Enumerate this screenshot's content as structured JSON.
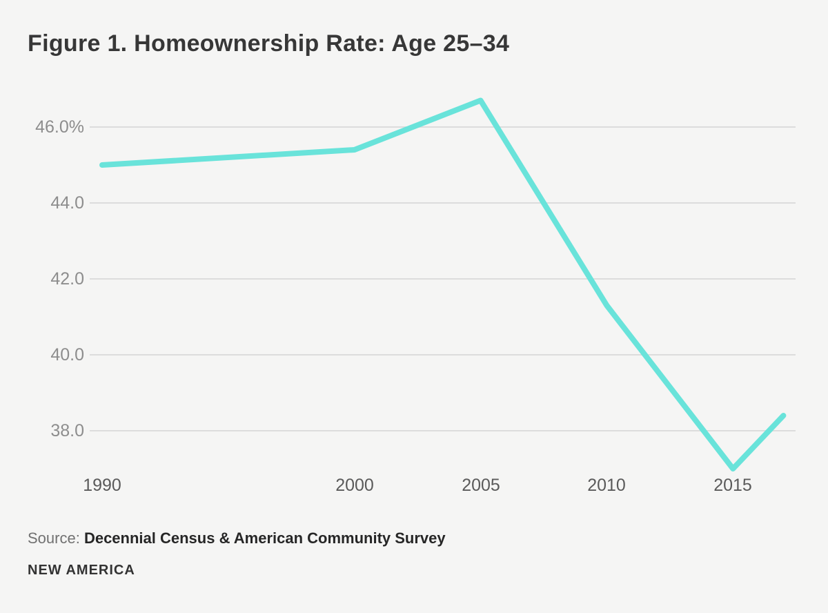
{
  "chart_data": {
    "type": "line",
    "title": "Figure 1. Homeownership Rate: Age 25–34",
    "x": [
      1990,
      2000,
      2005,
      2010,
      2015,
      2017
    ],
    "values": [
      45.0,
      45.4,
      46.7,
      41.3,
      37.0,
      38.4
    ],
    "series_name": "Homeownership rate, age 25–34 (%)",
    "xlabel": "",
    "ylabel": "",
    "ylim": [
      36.9,
      47.1
    ],
    "ytick_values": [
      46.0,
      44.0,
      42.0,
      40.0,
      38.0
    ],
    "ytick_labels": [
      "46.0%",
      "44.0",
      "42.0",
      "40.0",
      "38.0"
    ],
    "xtick_values": [
      1990,
      2000,
      2005,
      2010,
      2015
    ],
    "xtick_labels": [
      "1990",
      "2000",
      "2005",
      "2010",
      "2015"
    ],
    "grid": "horizontal-only",
    "legend": "none",
    "line_color": "#69e3da",
    "gridline_color": "#dcdcdc",
    "background_color": "#f5f5f4"
  },
  "footer": {
    "source_label": "Source:",
    "source_text": "Decennial Census & American Community Survey",
    "brand": "NEW AMERICA"
  }
}
